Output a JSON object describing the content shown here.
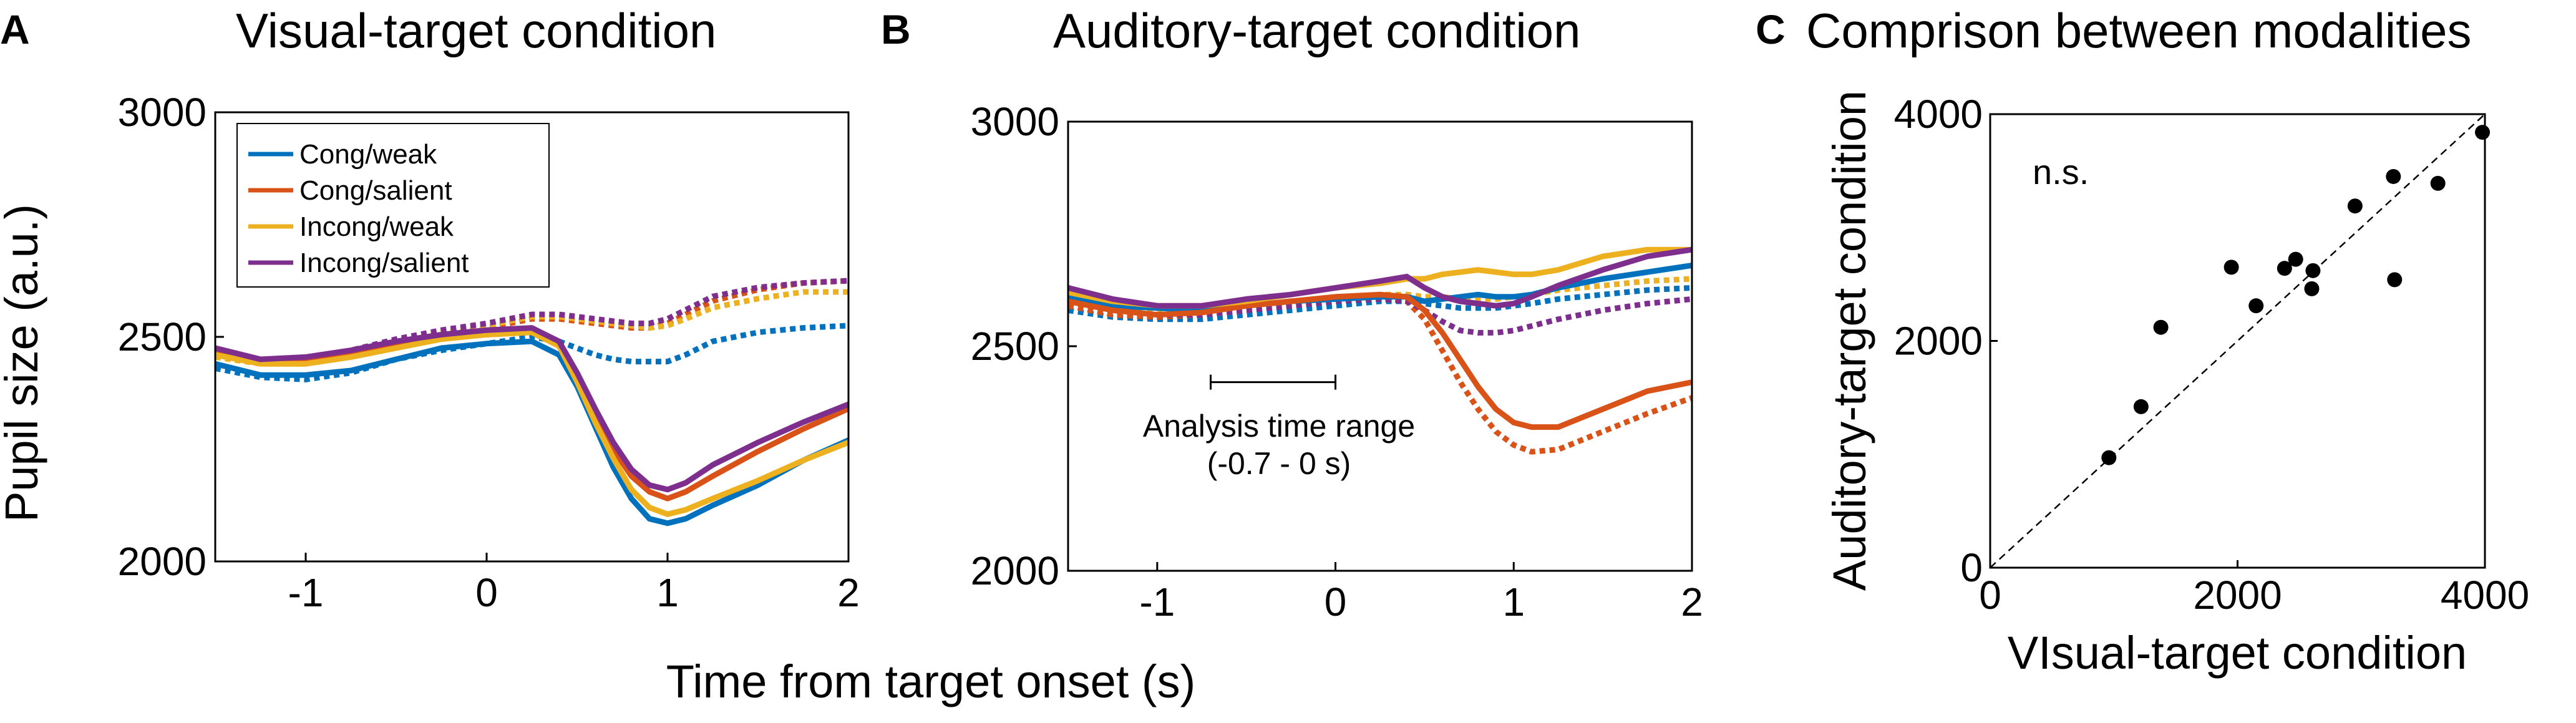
{
  "figure": {
    "panel_labels": [
      "A",
      "B",
      "C"
    ],
    "shared_xlabel": "Time from target onset (s)",
    "shared_ylabel": "Pupil size (a.u.)"
  },
  "chart_data": [
    {
      "type": "line",
      "panel": "A",
      "title": "Visual-target condition",
      "xlim": [
        -1.5,
        2
      ],
      "ylim": [
        2000,
        3000
      ],
      "xticks": [
        -1,
        0,
        1,
        2
      ],
      "xtick_labels": [
        "-1",
        "0",
        "1",
        "2"
      ],
      "yticks": [
        2000,
        2500,
        3000
      ],
      "ytick_labels": [
        "2000",
        "2500",
        "3000"
      ],
      "legend": [
        "Cong/weak",
        "Cong/salient",
        "Incong/weak",
        "Incong/salient"
      ],
      "legend_position": "top-left",
      "x": [
        -1.5,
        -1.25,
        -1.0,
        -0.75,
        -0.5,
        -0.25,
        0.0,
        0.25,
        0.4,
        0.5,
        0.6,
        0.7,
        0.8,
        0.9,
        1.0,
        1.1,
        1.25,
        1.5,
        1.75,
        2.0
      ],
      "series": [
        {
          "name": "Cong/weak",
          "color": "#0072bd",
          "style": "solid",
          "values": [
            2440,
            2415,
            2415,
            2425,
            2450,
            2475,
            2485,
            2490,
            2460,
            2390,
            2300,
            2210,
            2140,
            2095,
            2085,
            2095,
            2125,
            2170,
            2225,
            2270
          ]
        },
        {
          "name": "Cong/salient",
          "color": "#d95319",
          "style": "solid",
          "values": [
            2470,
            2445,
            2450,
            2460,
            2480,
            2500,
            2505,
            2510,
            2480,
            2410,
            2330,
            2250,
            2190,
            2155,
            2140,
            2155,
            2190,
            2245,
            2295,
            2340
          ]
        },
        {
          "name": "Incong/weak",
          "color": "#edb120",
          "style": "solid",
          "values": [
            2460,
            2440,
            2440,
            2455,
            2475,
            2495,
            2505,
            2510,
            2480,
            2400,
            2310,
            2230,
            2160,
            2120,
            2105,
            2115,
            2140,
            2180,
            2225,
            2265
          ]
        },
        {
          "name": "Incong/salient",
          "color": "#7e2f8e",
          "style": "solid",
          "values": [
            2475,
            2450,
            2455,
            2470,
            2490,
            2505,
            2515,
            2520,
            2490,
            2420,
            2340,
            2265,
            2205,
            2170,
            2160,
            2175,
            2215,
            2265,
            2310,
            2350
          ]
        },
        {
          "name": "Cong/weak (dotted)",
          "color": "#0072bd",
          "style": "dotted",
          "values": [
            2430,
            2410,
            2405,
            2420,
            2450,
            2470,
            2485,
            2500,
            2490,
            2475,
            2460,
            2450,
            2445,
            2445,
            2445,
            2460,
            2490,
            2510,
            2520,
            2525
          ]
        },
        {
          "name": "Cong/salient (dotted)",
          "color": "#d95319",
          "style": "dotted",
          "values": [
            2470,
            2445,
            2445,
            2460,
            2480,
            2505,
            2520,
            2540,
            2540,
            2535,
            2530,
            2525,
            2520,
            2520,
            2530,
            2550,
            2580,
            2605,
            2620,
            2625
          ]
        },
        {
          "name": "Incong/weak (dotted)",
          "color": "#edb120",
          "style": "dotted",
          "values": [
            2455,
            2440,
            2440,
            2460,
            2485,
            2510,
            2525,
            2545,
            2545,
            2540,
            2535,
            2530,
            2525,
            2520,
            2525,
            2540,
            2565,
            2585,
            2600,
            2600
          ]
        },
        {
          "name": "Incong/salient (dotted)",
          "color": "#7e2f8e",
          "style": "dotted",
          "values": [
            2470,
            2450,
            2450,
            2470,
            2495,
            2515,
            2530,
            2550,
            2550,
            2545,
            2540,
            2535,
            2530,
            2530,
            2540,
            2560,
            2590,
            2610,
            2620,
            2625
          ]
        }
      ]
    },
    {
      "type": "line",
      "panel": "B",
      "title": "Auditory-target condition",
      "xlim": [
        -1.5,
        2
      ],
      "ylim": [
        2000,
        3000
      ],
      "xticks": [
        -1,
        0,
        1,
        2
      ],
      "xtick_labels": [
        "-1",
        "0",
        "1",
        "2"
      ],
      "yticks": [
        2000,
        2500,
        3000
      ],
      "ytick_labels": [
        "2000",
        "2500",
        "3000"
      ],
      "annotation": {
        "line1": "Analysis time range",
        "line2": "(-0.7 - 0 s)",
        "range": [
          -0.7,
          0
        ],
        "y": 2420
      },
      "x": [
        -1.5,
        -1.25,
        -1.0,
        -0.75,
        -0.5,
        -0.25,
        0.0,
        0.25,
        0.4,
        0.5,
        0.6,
        0.7,
        0.8,
        0.9,
        1.0,
        1.1,
        1.25,
        1.5,
        1.75,
        2.0
      ],
      "series": [
        {
          "name": "Cong/weak",
          "color": "#0072bd",
          "style": "solid",
          "values": [
            2610,
            2590,
            2585,
            2580,
            2590,
            2600,
            2605,
            2610,
            2610,
            2600,
            2605,
            2610,
            2615,
            2610,
            2610,
            2615,
            2630,
            2650,
            2665,
            2680
          ]
        },
        {
          "name": "Cong/salient",
          "color": "#d95319",
          "style": "solid",
          "values": [
            2600,
            2580,
            2570,
            2575,
            2590,
            2600,
            2610,
            2615,
            2610,
            2580,
            2530,
            2470,
            2410,
            2360,
            2330,
            2320,
            2320,
            2360,
            2400,
            2420
          ]
        },
        {
          "name": "Incong/weak",
          "color": "#edb120",
          "style": "solid",
          "values": [
            2620,
            2600,
            2590,
            2590,
            2600,
            2615,
            2630,
            2640,
            2650,
            2650,
            2660,
            2665,
            2670,
            2665,
            2660,
            2660,
            2670,
            2700,
            2715,
            2715
          ]
        },
        {
          "name": "Incong/salient",
          "color": "#7e2f8e",
          "style": "solid",
          "values": [
            2630,
            2605,
            2590,
            2590,
            2605,
            2615,
            2630,
            2645,
            2655,
            2630,
            2610,
            2600,
            2595,
            2590,
            2595,
            2610,
            2635,
            2670,
            2700,
            2715
          ]
        },
        {
          "name": "Cong/weak (dotted)",
          "color": "#0072bd",
          "style": "dotted",
          "values": [
            2580,
            2565,
            2560,
            2560,
            2570,
            2580,
            2590,
            2600,
            2600,
            2595,
            2590,
            2585,
            2585,
            2585,
            2590,
            2595,
            2605,
            2615,
            2625,
            2630
          ]
        },
        {
          "name": "Cong/salient (dotted)",
          "color": "#d95319",
          "style": "dotted",
          "values": [
            2590,
            2570,
            2565,
            2570,
            2580,
            2590,
            2600,
            2610,
            2600,
            2560,
            2490,
            2420,
            2360,
            2310,
            2280,
            2265,
            2270,
            2310,
            2350,
            2385
          ]
        },
        {
          "name": "Incong/weak (dotted)",
          "color": "#edb120",
          "style": "dotted",
          "values": [
            2600,
            2580,
            2575,
            2575,
            2585,
            2595,
            2605,
            2615,
            2615,
            2610,
            2610,
            2605,
            2605,
            2605,
            2610,
            2615,
            2625,
            2635,
            2645,
            2650
          ]
        },
        {
          "name": "Incong/salient (dotted)",
          "color": "#7e2f8e",
          "style": "dotted",
          "values": [
            2600,
            2580,
            2570,
            2570,
            2580,
            2590,
            2600,
            2605,
            2600,
            2580,
            2555,
            2535,
            2530,
            2530,
            2535,
            2545,
            2560,
            2580,
            2595,
            2605
          ]
        }
      ]
    },
    {
      "type": "scatter",
      "panel": "C",
      "title": "Comprison between modalities",
      "xlabel": "VIsual-target condition",
      "ylabel": "Auditory-target condition",
      "xlim": [
        0,
        4000
      ],
      "ylim": [
        0,
        4000
      ],
      "xticks": [
        0,
        2000,
        4000
      ],
      "xtick_labels": [
        "0",
        "2000",
        "4000"
      ],
      "yticks": [
        0,
        2000,
        4000
      ],
      "ytick_labels": [
        "0",
        "2000",
        "4000"
      ],
      "annotation": "n.s.",
      "reference_line": "identity (dashed)",
      "x": [
        960,
        1220,
        1380,
        1950,
        2150,
        2380,
        2470,
        2600,
        2610,
        2950,
        3260,
        3270,
        3620,
        3980
      ],
      "y": [
        970,
        1420,
        2120,
        2650,
        2310,
        2640,
        2720,
        2460,
        2620,
        3190,
        3450,
        2540,
        3390,
        3840
      ]
    }
  ]
}
